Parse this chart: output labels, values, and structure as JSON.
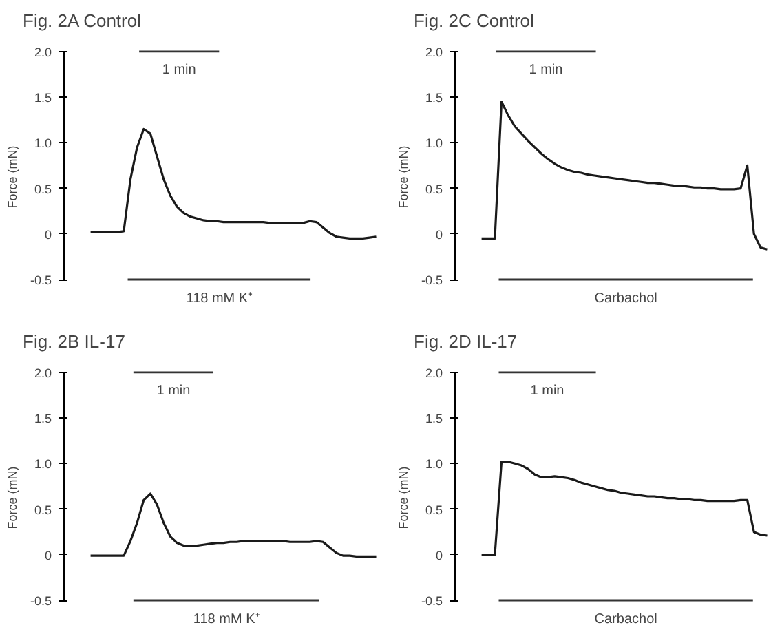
{
  "chart_data": [
    {
      "type": "line",
      "title": "Fig. 2A",
      "subtitle": "Control",
      "ylabel": "Force (mN)",
      "annotations": [
        "1 min",
        "118 mM K⁺"
      ],
      "tick_labels": "y",
      "ylim": [
        -0.5,
        2.0
      ],
      "yticks": [
        {
          "value": -0.5,
          "label": "-0.5"
        },
        0,
        0.5,
        {
          "value": 1.0,
          "label": "1.0"
        },
        1.5,
        {
          "value": 2.0,
          "label": "2.0"
        }
      ],
      "categories": [
        null,
        null,
        null,
        null,
        null,
        null,
        null,
        null,
        null,
        null,
        null,
        null,
        null,
        null,
        null,
        null,
        null,
        null,
        null,
        null,
        null,
        null,
        null,
        null,
        null,
        null,
        null,
        null,
        null,
        null,
        null,
        null,
        null,
        null,
        null,
        null,
        null,
        null,
        null,
        null,
        null,
        null,
        null,
        null
      ],
      "series": [
        {
          "color": "#1a1a1a",
          "values": [
            0.02,
            0.02,
            0.02,
            0.02,
            0.02,
            0.03,
            0.6,
            0.95,
            1.15,
            1.1,
            0.85,
            0.6,
            0.42,
            0.3,
            0.23,
            0.19,
            0.17,
            0.15,
            0.14,
            0.14,
            0.13,
            0.13,
            0.13,
            0.13,
            0.13,
            0.13,
            0.13,
            0.12,
            0.12,
            0.12,
            0.12,
            0.12,
            0.12,
            0.14,
            0.13,
            0.07,
            0.01,
            -0.03,
            -0.04,
            -0.05,
            -0.05,
            -0.05,
            -0.04,
            -0.03
          ]
        }
      ]
    },
    {
      "type": "line",
      "title": "Fig. 2C",
      "subtitle": "Control",
      "ylabel": "Force (mN)",
      "annotations": [
        "1 min",
        "Carbachol"
      ],
      "tick_labels": "y",
      "ylim": [
        -0.5,
        2.0
      ],
      "yticks": [
        {
          "value": -0.5,
          "label": "-0.5"
        },
        0,
        0.5,
        {
          "value": 1.0,
          "label": "1.0"
        },
        1.5,
        {
          "value": 2.0,
          "label": "2.0"
        }
      ],
      "categories": [
        null,
        null,
        null,
        null,
        null,
        null,
        null,
        null,
        null,
        null,
        null,
        null,
        null,
        null,
        null,
        null,
        null,
        null,
        null,
        null,
        null,
        null,
        null,
        null,
        null,
        null,
        null,
        null,
        null,
        null,
        null,
        null,
        null,
        null,
        null,
        null,
        null,
        null,
        null,
        null,
        null,
        null,
        null,
        null
      ],
      "series": [
        {
          "color": "#1a1a1a",
          "values": [
            -0.05,
            -0.05,
            -0.05,
            1.45,
            1.3,
            1.18,
            1.1,
            1.02,
            0.95,
            0.88,
            0.82,
            0.77,
            0.73,
            0.7,
            0.68,
            0.67,
            0.65,
            0.64,
            0.63,
            0.62,
            0.61,
            0.6,
            0.59,
            0.58,
            0.57,
            0.56,
            0.56,
            0.55,
            0.54,
            0.53,
            0.53,
            0.52,
            0.51,
            0.51,
            0.5,
            0.5,
            0.49,
            0.49,
            0.49,
            0.5,
            0.75,
            0.0,
            -0.15,
            -0.17
          ]
        }
      ]
    },
    {
      "type": "line",
      "title": "Fig. 2B",
      "subtitle": "IL-17",
      "ylabel": "Force (mN)",
      "annotations": [
        "1 min",
        "118 mM K⁺"
      ],
      "tick_labels": "y",
      "ylim": [
        -0.5,
        2.0
      ],
      "yticks": [
        {
          "value": -0.5,
          "label": "-0.5"
        },
        0,
        0.5,
        {
          "value": 1.0,
          "label": "1.0"
        },
        1.5,
        {
          "value": 2.0,
          "label": "2.0"
        }
      ],
      "categories": [
        null,
        null,
        null,
        null,
        null,
        null,
        null,
        null,
        null,
        null,
        null,
        null,
        null,
        null,
        null,
        null,
        null,
        null,
        null,
        null,
        null,
        null,
        null,
        null,
        null,
        null,
        null,
        null,
        null,
        null,
        null,
        null,
        null,
        null,
        null,
        null,
        null,
        null,
        null,
        null,
        null,
        null,
        null,
        null
      ],
      "series": [
        {
          "color": "#1a1a1a",
          "values": [
            -0.01,
            -0.01,
            -0.01,
            -0.01,
            -0.01,
            -0.01,
            0.15,
            0.35,
            0.6,
            0.67,
            0.55,
            0.35,
            0.2,
            0.13,
            0.1,
            0.1,
            0.1,
            0.11,
            0.12,
            0.13,
            0.13,
            0.14,
            0.14,
            0.15,
            0.15,
            0.15,
            0.15,
            0.15,
            0.15,
            0.15,
            0.14,
            0.14,
            0.14,
            0.14,
            0.15,
            0.14,
            0.08,
            0.02,
            -0.01,
            -0.01,
            -0.02,
            -0.02,
            -0.02,
            -0.02
          ]
        }
      ]
    },
    {
      "type": "line",
      "title": "Fig. 2D",
      "subtitle": "IL-17",
      "ylabel": "Force (mN)",
      "annotations": [
        "1 min",
        "Carbachol"
      ],
      "tick_labels": "y",
      "ylim": [
        -0.5,
        2.0
      ],
      "yticks": [
        {
          "value": -0.5,
          "label": "-0.5"
        },
        0,
        0.5,
        {
          "value": 1.0,
          "label": "1.0"
        },
        1.5,
        {
          "value": 2.0,
          "label": "2.0"
        }
      ],
      "categories": [
        null,
        null,
        null,
        null,
        null,
        null,
        null,
        null,
        null,
        null,
        null,
        null,
        null,
        null,
        null,
        null,
        null,
        null,
        null,
        null,
        null,
        null,
        null,
        null,
        null,
        null,
        null,
        null,
        null,
        null,
        null,
        null,
        null,
        null,
        null,
        null,
        null,
        null,
        null,
        null,
        null,
        null,
        null,
        null
      ],
      "series": [
        {
          "color": "#1a1a1a",
          "values": [
            0,
            0,
            0,
            1.02,
            1.02,
            1.0,
            0.98,
            0.94,
            0.88,
            0.85,
            0.85,
            0.86,
            0.85,
            0.84,
            0.82,
            0.79,
            0.77,
            0.75,
            0.73,
            0.71,
            0.7,
            0.68,
            0.67,
            0.66,
            0.65,
            0.64,
            0.64,
            0.63,
            0.62,
            0.62,
            0.61,
            0.61,
            0.6,
            0.6,
            0.59,
            0.59,
            0.59,
            0.59,
            0.59,
            0.6,
            0.6,
            0.25,
            0.22,
            0.21
          ]
        }
      ]
    }
  ]
}
